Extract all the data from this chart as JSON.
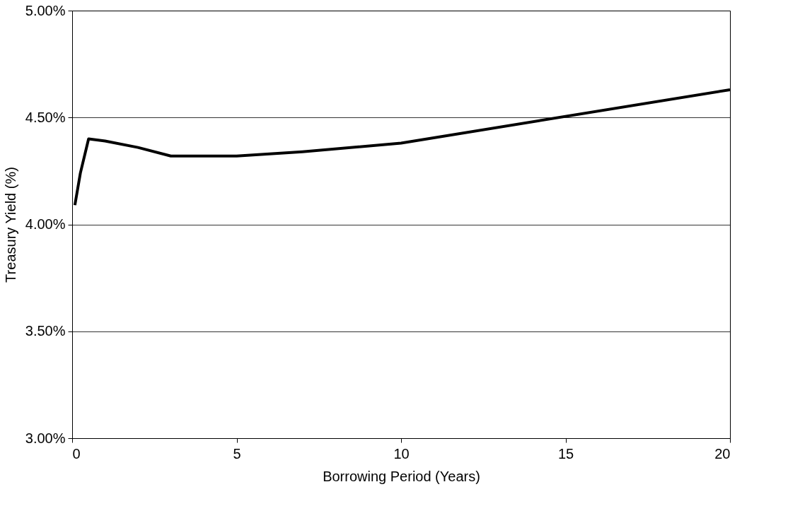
{
  "chart_data": {
    "type": "line",
    "xlabel": "Borrowing Period (Years)",
    "ylabel": "Treasury Yield (%)",
    "x": [
      0.083,
      0.25,
      0.5,
      1,
      2,
      3,
      5,
      7,
      10,
      20
    ],
    "series": [
      {
        "color": "#000000",
        "values": [
          4.09,
          4.24,
          4.4,
          4.39,
          4.36,
          4.32,
          4.32,
          4.34,
          4.38,
          4.63
        ]
      }
    ],
    "xlim": [
      0,
      20
    ],
    "xticks": [
      0,
      5,
      10,
      15,
      20
    ],
    "ylim": [
      3.0,
      5.0
    ],
    "yticks": [
      {
        "value": 3.0,
        "label": "3.00%"
      },
      {
        "value": 3.5,
        "label": "3.50%"
      },
      {
        "value": 4.0,
        "label": "4.00%"
      },
      {
        "value": 4.5,
        "label": "4.50%"
      },
      {
        "value": 5.0,
        "label": "5.00%"
      }
    ],
    "grid": "y",
    "legend": false,
    "marker": "none",
    "line_style": "solid"
  }
}
